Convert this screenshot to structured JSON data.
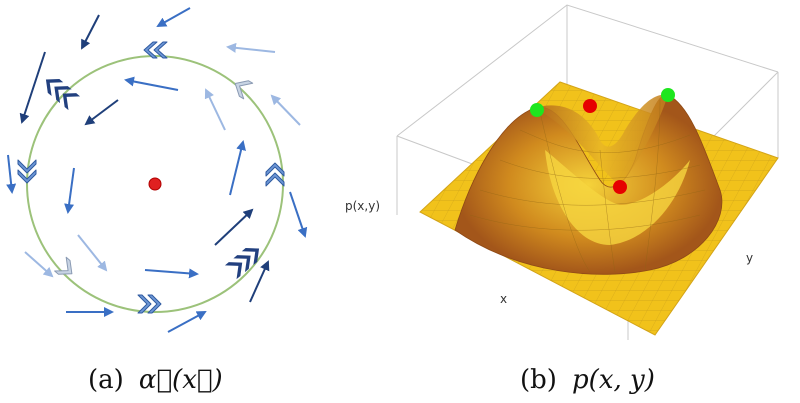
{
  "panel_a": {
    "caption_prefix": "(a)",
    "caption_math": "α⃗(x⃗)",
    "colors": {
      "circle": "#9cc27a",
      "center_point": "#e02020",
      "arrow_dark": "#1f3f7a",
      "arrow_mid": "#3a6fc4",
      "arrow_light": "#9db8e2",
      "chevron_light": "#c8d4e4"
    }
  },
  "panel_b": {
    "caption_prefix": "(b)",
    "caption_math": "p(x, y)",
    "axis_z_label": "p(x,y)",
    "axis_x_label": "x",
    "axis_y_label": "y",
    "colors": {
      "surface": "#f1c21b",
      "surface_shadow": "#a3561a",
      "maxima": "#1ee61e",
      "saddle": "#e60000",
      "box": "#c8c8c8"
    }
  }
}
